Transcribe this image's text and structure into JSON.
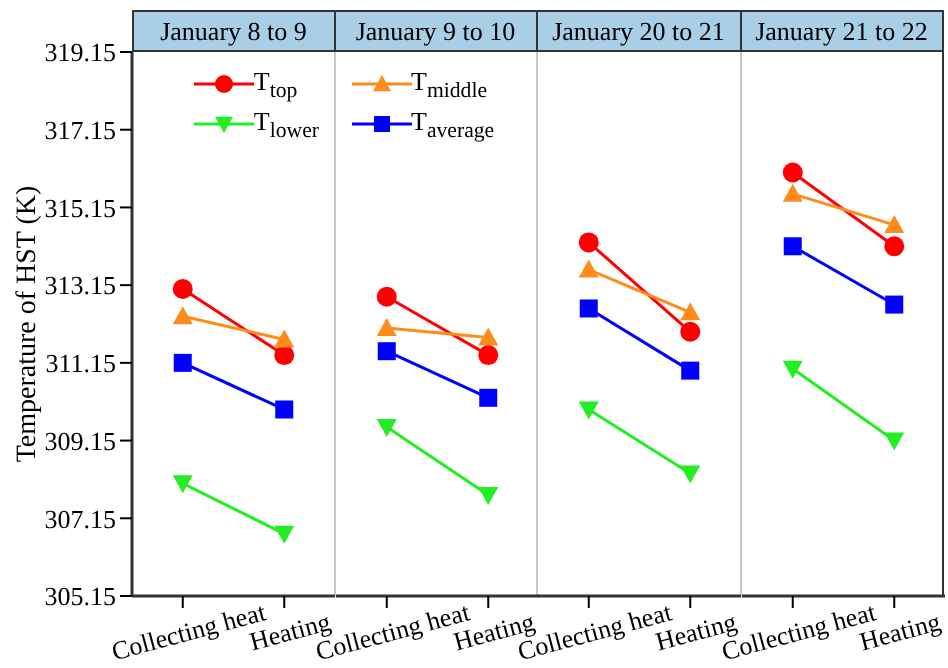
{
  "chart_data": [
    {
      "type": "line",
      "title": "January 8  to 9",
      "ylabel": "Temperature of HST (K)",
      "categories": [
        "Collecting heat",
        "Heating"
      ],
      "ylim": [
        305.15,
        319.15
      ],
      "yticks": [
        305.15,
        307.15,
        309.15,
        311.15,
        313.15,
        315.15,
        317.15,
        319.15
      ],
      "legend": "top right",
      "series": [
        {
          "name": "T$_{top}$",
          "color": "#ff0000",
          "marker": "circle",
          "values": [
            313.05,
            311.35
          ]
        },
        {
          "color": "#ff8c1a",
          "marker": "triangle",
          "values": [
            312.35,
            311.75
          ]
        },
        {
          "name": "T$_{lower}$",
          "color": "#22ee22",
          "marker": "triangle-down",
          "values": [
            308.05,
            306.75
          ]
        },
        {
          "color": "#0000ff",
          "marker": "square",
          "values": [
            311.15,
            309.95
          ]
        }
      ]
    },
    {
      "type": "line",
      "title": "January 9  to 10",
      "categories": [
        "Collecting heat",
        "Heating"
      ],
      "ylim": [
        305.15,
        319.15
      ],
      "yticks": [
        305.15,
        307.15,
        309.15,
        311.15,
        313.15,
        315.15,
        317.15,
        319.15
      ],
      "tick_labels": "x",
      "legend": "top left",
      "series": [
        {
          "color": "#ff0000",
          "marker": "circle",
          "values": [
            312.85,
            311.35
          ]
        },
        {
          "name": "T$_{middle}$",
          "color": "#ff8c1a",
          "marker": "triangle",
          "values": [
            312.05,
            311.8
          ]
        },
        {
          "color": "#22ee22",
          "marker": "triangle-down",
          "values": [
            309.5,
            307.75
          ]
        },
        {
          "name": "T$_{average}$",
          "color": "#0000ff",
          "marker": "square",
          "values": [
            311.45,
            310.25
          ]
        }
      ]
    },
    {
      "type": "line",
      "title": "January 20  to 21",
      "categories": [
        "Collecting heat",
        "Heating"
      ],
      "ylim": [
        305.15,
        319.15
      ],
      "yticks": [
        305.15,
        307.15,
        309.15,
        311.15,
        313.15,
        315.15,
        317.15,
        319.15
      ],
      "tick_labels": "x",
      "series": [
        {
          "color": "#ff0000",
          "marker": "circle",
          "values": [
            314.25,
            311.95
          ]
        },
        {
          "color": "#ff8c1a",
          "marker": "triangle",
          "values": [
            313.55,
            312.45
          ]
        },
        {
          "color": "#22ee22",
          "marker": "triangle-down",
          "values": [
            309.95,
            308.3
          ]
        },
        {
          "color": "#0000ff",
          "marker": "square",
          "values": [
            312.55,
            310.95
          ]
        }
      ]
    },
    {
      "type": "line",
      "title": "January 21  to 22",
      "categories": [
        "Collecting heat",
        "Heating"
      ],
      "ylim": [
        305.15,
        319.15
      ],
      "yticks": [
        305.15,
        307.15,
        309.15,
        311.15,
        313.15,
        315.15,
        317.15,
        319.15
      ],
      "tick_labels": "x",
      "series": [
        {
          "color": "#ff0000",
          "marker": "circle",
          "values": [
            316.05,
            314.15
          ]
        },
        {
          "color": "#ff8c1a",
          "marker": "triangle",
          "values": [
            315.5,
            314.7
          ]
        },
        {
          "color": "#22ee22",
          "marker": "triangle-down",
          "values": [
            311.0,
            309.15
          ]
        },
        {
          "color": "#0000ff",
          "marker": "square",
          "values": [
            314.15,
            312.65
          ]
        }
      ]
    }
  ]
}
